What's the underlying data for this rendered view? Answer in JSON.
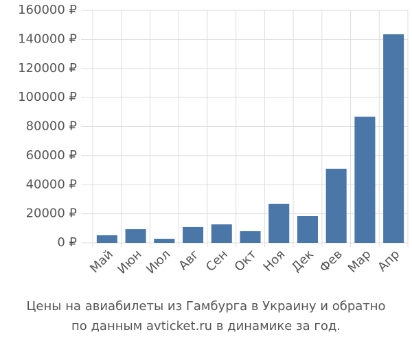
{
  "chart_data": {
    "type": "bar",
    "title": [
      "Цены на авиабилеты из Гамбурга в Украину и обратно",
      "по данным avticket.ru в динамике за год."
    ],
    "categories": [
      "Май",
      "Июн",
      "Июл",
      "Авг",
      "Сен",
      "Окт",
      "Ноя",
      "Дек",
      "Фев",
      "Мар",
      "Апр"
    ],
    "values": [
      5200,
      9400,
      2800,
      10900,
      12700,
      8000,
      26900,
      18400,
      51000,
      86800,
      143500
    ],
    "color": "#4a76a8",
    "ylim": [
      0,
      160000
    ],
    "yticks": [
      {
        "value": 0,
        "label": "0 ₽"
      },
      {
        "value": 20000,
        "label": "20000 ₽"
      },
      {
        "value": 40000,
        "label": "40000 ₽"
      },
      {
        "value": 60000,
        "label": "60000 ₽"
      },
      {
        "value": 80000,
        "label": "80000 ₽"
      },
      {
        "value": 100000,
        "label": "100000 ₽"
      },
      {
        "value": 120000,
        "label": "120000 ₽"
      },
      {
        "value": 140000,
        "label": "140000 ₽"
      },
      {
        "value": 160000,
        "label": "160000 ₽"
      }
    ],
    "grid": true
  }
}
